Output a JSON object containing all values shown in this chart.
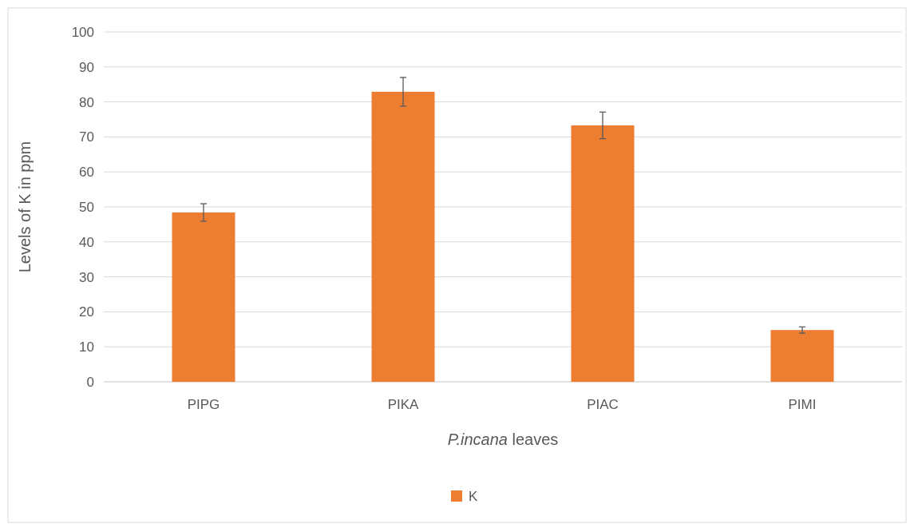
{
  "chart_data": {
    "type": "bar",
    "xlabel": "P.incana leaves",
    "ylabel": "Levels of K in ppm",
    "categories": [
      "PIPG",
      "PIKA",
      "PIAC",
      "PIMI"
    ],
    "series": [
      {
        "name": "K",
        "color": "#ed7d31",
        "values": [
          48.4,
          82.9,
          73.3,
          14.8
        ],
        "errors": [
          2.5,
          4.1,
          3.8,
          0.9
        ]
      }
    ],
    "ylim": [
      0,
      100
    ],
    "yticks": [
      0,
      10,
      20,
      30,
      40,
      50,
      60,
      70,
      80,
      90,
      100
    ],
    "grid": "y",
    "legend": "bottom"
  }
}
